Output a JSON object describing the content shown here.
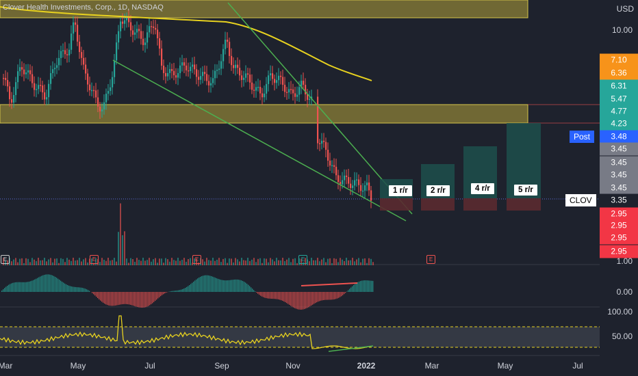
{
  "header": {
    "title": "Clover Health Investments, Corp., 1D, NASDAQ",
    "currency": "USD"
  },
  "price_axis": {
    "ticks": [
      "10.00",
      "1.00",
      "0.00",
      "100.00",
      "50.00"
    ],
    "labels": [
      {
        "text": "7.10",
        "color": "#f7931a"
      },
      {
        "text": "6.36",
        "color": "#f7931a"
      },
      {
        "text": "6.31",
        "color": "#26a69a"
      },
      {
        "text": "5.47",
        "color": "#26a69a"
      },
      {
        "text": "4.77",
        "color": "#26a69a"
      },
      {
        "text": "4.23",
        "color": "#26a69a"
      },
      {
        "text": "3.48",
        "color": "#2962ff"
      },
      {
        "text": "3.45",
        "color": "#787b86"
      },
      {
        "text": "3.45",
        "color": "#787b86"
      },
      {
        "text": "3.45",
        "color": "#787b86"
      },
      {
        "text": "3.45",
        "color": "#787b86"
      },
      {
        "text": "3.35",
        "color": "#1e222d"
      },
      {
        "text": "2.95",
        "color": "#f23645"
      },
      {
        "text": "2.95",
        "color": "#f23645"
      },
      {
        "text": "2.95",
        "color": "#f23645"
      },
      {
        "text": "2.95",
        "color": "#f23645"
      }
    ],
    "post_tag": "Post",
    "symbol_tag": "CLOV"
  },
  "rr_targets": [
    "1 r/r",
    "2 r/r",
    "4 r/r",
    "5 r/r"
  ],
  "earnings_marker": "E",
  "time_axis": [
    "Mar",
    "May",
    "Jul",
    "Sep",
    "Nov",
    "2022",
    "Mar",
    "May",
    "Jul"
  ],
  "colors": {
    "up": "#26a69a",
    "down": "#ef5350",
    "zone": "#b5a33a",
    "ma": "#e8d21f",
    "trend": "#4caf50",
    "rsi": "#e8d21f"
  }
}
